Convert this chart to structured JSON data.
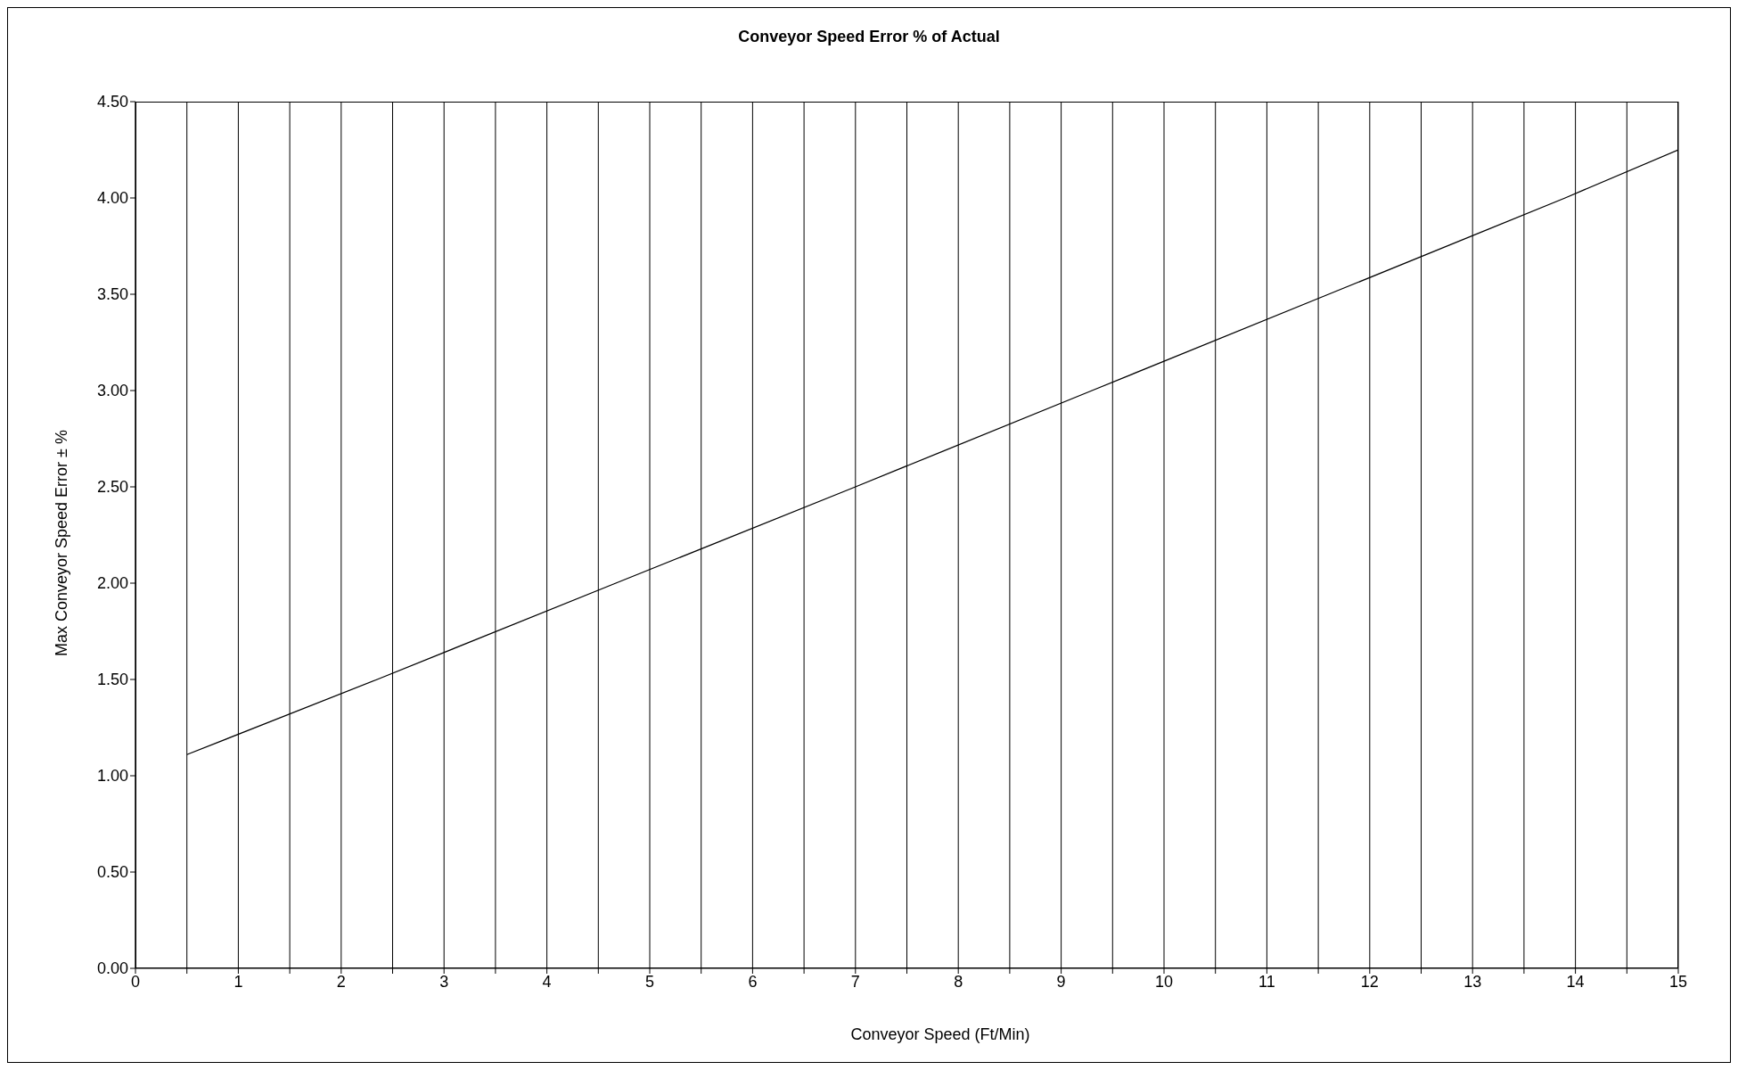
{
  "chart_data": {
    "type": "line",
    "title": "Conveyor Speed Error % of Actual",
    "xlabel": "Conveyor Speed (Ft/Min)",
    "ylabel": "Max Conveyor Speed Error ± %",
    "x": [
      0.5,
      2.35,
      4.67,
      7,
      9.3,
      11.6,
      13.9,
      15
    ],
    "series": [
      {
        "color": "#000000",
        "values": [
          1.11,
          1.5,
          2.0,
          2.5,
          3.0,
          3.5,
          4.0,
          4.25
        ]
      }
    ],
    "xlim": [
      0,
      15
    ],
    "xticks": [
      0,
      {
        "value": 0.5,
        "label": null
      },
      1,
      {
        "value": 1.5,
        "label": null
      },
      2,
      {
        "value": 2.5,
        "label": null
      },
      3,
      {
        "value": 3.5,
        "label": null
      },
      4,
      {
        "value": 4.5,
        "label": null
      },
      5,
      {
        "value": 5.5,
        "label": null
      },
      6,
      {
        "value": 6.5,
        "label": null
      },
      7,
      {
        "value": 7.5,
        "label": null
      },
      8,
      {
        "value": 8.5,
        "label": null
      },
      9,
      {
        "value": 9.5,
        "label": null
      },
      10,
      {
        "value": 10.5,
        "label": null
      },
      11,
      {
        "value": 11.5,
        "label": null
      },
      12,
      {
        "value": 12.5,
        "label": null
      },
      13,
      {
        "value": 13.5,
        "label": null
      },
      14,
      {
        "value": 14.5,
        "label": null
      },
      15
    ],
    "ylim": [
      0,
      4.5
    ],
    "yticks": [
      {
        "value": 0,
        "label": "0.00"
      },
      {
        "value": 0.5,
        "label": "0.50"
      },
      {
        "value": 1,
        "label": "1.00"
      },
      {
        "value": 1.5,
        "label": "1.50"
      },
      {
        "value": 2,
        "label": "2.00"
      },
      {
        "value": 2.5,
        "label": "2.50"
      },
      {
        "value": 3,
        "label": "3.00"
      },
      {
        "value": 3.5,
        "label": "3.50"
      },
      {
        "value": 4,
        "label": "4.00"
      },
      {
        "value": 4.5,
        "label": "4.50"
      }
    ],
    "grid": true,
    "legend": false,
    "marker": "none",
    "line_style": "solid"
  }
}
